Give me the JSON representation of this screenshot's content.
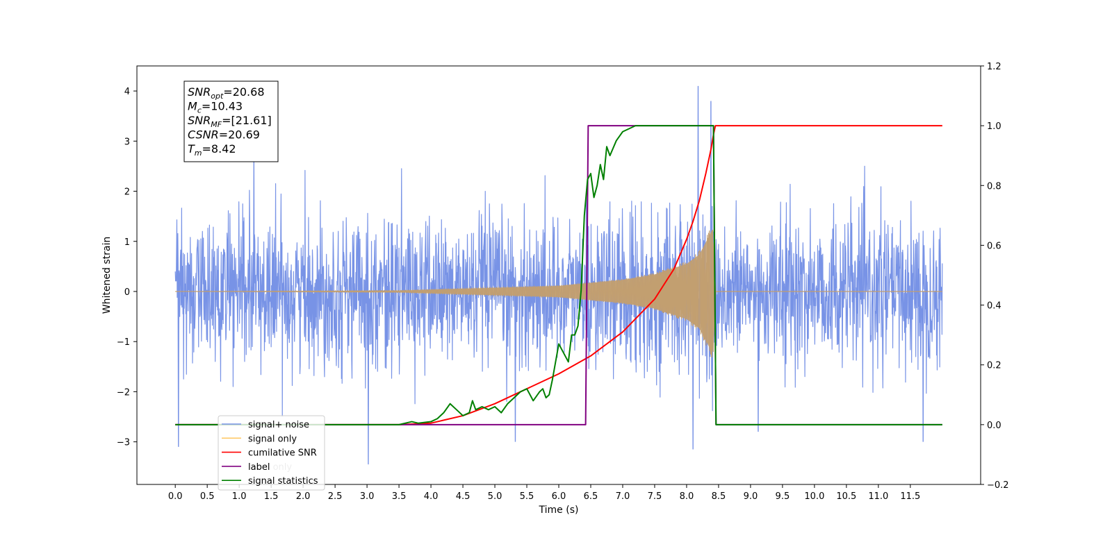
{
  "chart_data": {
    "type": "line",
    "xlabel": "Time (s)",
    "ylabel": "Whitened strain",
    "xlim": [
      -0.6,
      12.6
    ],
    "ylim": [
      -3.85,
      4.5
    ],
    "y2lim": [
      -0.2,
      1.2
    ],
    "grid": false,
    "legend_position": "lower-left",
    "x_ticks": [
      "0.0",
      "0.5",
      "1.0",
      "1.5",
      "2.0",
      "2.5",
      "3.0",
      "3.5",
      "4.0",
      "4.5",
      "5.0",
      "5.5",
      "6.0",
      "6.5",
      "7.0",
      "7.5",
      "8.0",
      "8.5",
      "9.0",
      "9.5",
      "10.0",
      "10.5",
      "11.0",
      "11.5"
    ],
    "y_ticks": [
      "−3",
      "−2",
      "−1",
      "0",
      "1",
      "2",
      "3",
      "4"
    ],
    "y2_ticks": [
      "−0.2",
      "0.0",
      "0.2",
      "0.4",
      "0.6",
      "0.8",
      "1.0",
      "1.2"
    ],
    "stats_box": [
      {
        "main": "SNR",
        "sub": "opt",
        "rest": "=20.68"
      },
      {
        "main": "M",
        "sub": "c",
        "rest": "=10.43"
      },
      {
        "main": "SNR",
        "sub": "MF",
        "rest": "=[21.61]"
      },
      {
        "main": "CSNR",
        "sub": "",
        "rest": "=20.69"
      },
      {
        "main": "T",
        "sub": "m",
        "rest": "=8.42"
      }
    ],
    "series": [
      {
        "name": "signal+ noise",
        "axis": "left",
        "color": "#7893e6",
        "description_of_values": "white-noise-like strain, amplitude mostly within ±1.6, extremes approx 4.1 at t≈8.18 and −3.45 at t≈3.02",
        "peak_points": [
          [
            1.23,
            2.6
          ],
          [
            3.02,
            -3.45
          ],
          [
            5.32,
            -3.0
          ],
          [
            8.18,
            4.1
          ],
          [
            8.38,
            3.8
          ],
          [
            8.1,
            -3.15
          ],
          [
            9.12,
            -2.8
          ],
          [
            11.7,
            -3.0
          ],
          [
            0.05,
            -3.1
          ]
        ]
      },
      {
        "name": "signal only",
        "axis": "left",
        "color": "#c29e70",
        "description_of_values": "chirp signal, amplitude grows from 0 near t=3.5 to about ±1.4 at t=8.42, zero afterwards",
        "envelope": [
          [
            0,
            0.0
          ],
          [
            3.5,
            0.02
          ],
          [
            6.0,
            0.12
          ],
          [
            7.0,
            0.25
          ],
          [
            7.5,
            0.37
          ],
          [
            8.0,
            0.6
          ],
          [
            8.2,
            0.8
          ],
          [
            8.35,
            1.2
          ],
          [
            8.42,
            1.4
          ],
          [
            8.45,
            0.0
          ],
          [
            12.0,
            0.0
          ]
        ]
      },
      {
        "name": "cumilative SNR",
        "axis": "right",
        "color": "#ff0000",
        "x": [
          0.0,
          3.5,
          4.0,
          4.5,
          5.0,
          5.5,
          6.0,
          6.5,
          7.0,
          7.5,
          7.8,
          8.0,
          8.1,
          8.2,
          8.3,
          8.38,
          8.42,
          8.45,
          12.0
        ],
        "values": [
          0.0,
          0.0,
          0.005,
          0.03,
          0.07,
          0.12,
          0.17,
          0.23,
          0.31,
          0.42,
          0.52,
          0.62,
          0.68,
          0.75,
          0.84,
          0.92,
          0.97,
          1.0,
          1.0
        ]
      },
      {
        "name": "label",
        "axis": "right",
        "color": "#800080",
        "x": [
          0.0,
          6.42,
          6.46,
          8.42,
          8.46,
          12.0
        ],
        "values": [
          0.0,
          0.0,
          1.0,
          1.0,
          0.0,
          0.0
        ]
      },
      {
        "name": "signal statistics",
        "axis": "right",
        "color": "#008000",
        "x": [
          0.0,
          3.5,
          3.7,
          3.8,
          4.0,
          4.1,
          4.2,
          4.3,
          4.4,
          4.5,
          4.6,
          4.65,
          4.7,
          4.8,
          4.9,
          5.0,
          5.1,
          5.2,
          5.3,
          5.4,
          5.5,
          5.6,
          5.7,
          5.75,
          5.8,
          5.85,
          5.9,
          6.0,
          6.1,
          6.15,
          6.2,
          6.25,
          6.3,
          6.35,
          6.4,
          6.45,
          6.5,
          6.55,
          6.6,
          6.65,
          6.7,
          6.75,
          6.8,
          6.9,
          7.0,
          7.2,
          7.5,
          8.0,
          8.38,
          8.42,
          8.46,
          12.0
        ],
        "values": [
          0.0,
          0.0,
          0.01,
          0.005,
          0.01,
          0.02,
          0.04,
          0.07,
          0.05,
          0.03,
          0.04,
          0.08,
          0.05,
          0.06,
          0.05,
          0.06,
          0.04,
          0.07,
          0.09,
          0.11,
          0.12,
          0.08,
          0.11,
          0.12,
          0.09,
          0.1,
          0.15,
          0.27,
          0.23,
          0.21,
          0.3,
          0.3,
          0.33,
          0.45,
          0.7,
          0.82,
          0.84,
          0.76,
          0.8,
          0.87,
          0.82,
          0.93,
          0.9,
          0.95,
          0.98,
          1.0,
          1.0,
          1.0,
          1.0,
          1.0,
          0.0,
          0.0
        ]
      }
    ],
    "legend": [
      {
        "label": "signal+ noise",
        "color": "#7893e6"
      },
      {
        "label": "signal only",
        "color": "#ffc966"
      },
      {
        "label": "cumilative SNR",
        "color": "#ff0000"
      },
      {
        "label": "label",
        "color": "#800080"
      },
      {
        "label": "signal statistics",
        "color": "#008000"
      }
    ],
    "hidden_legend_text": "label only"
  }
}
